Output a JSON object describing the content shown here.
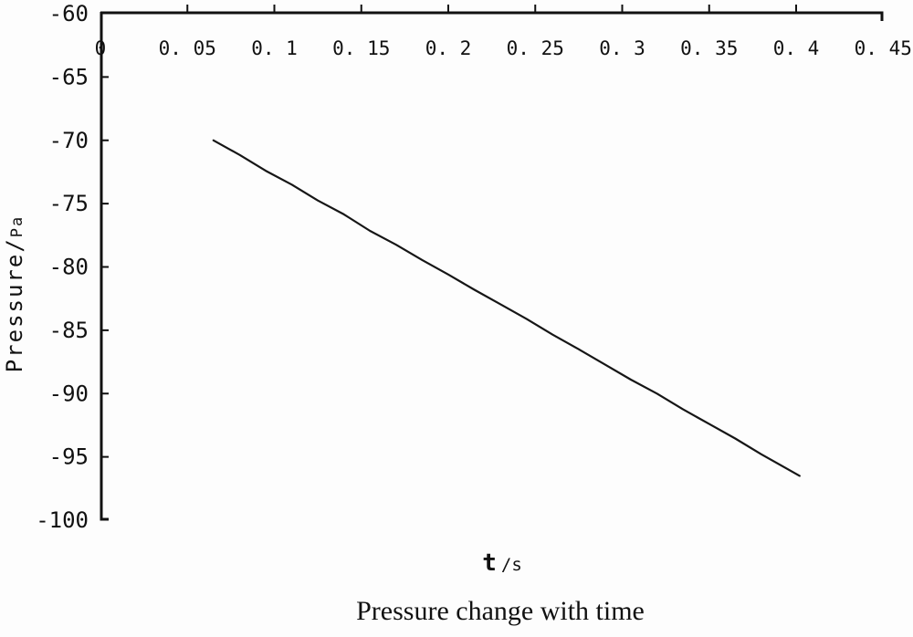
{
  "chart_data": {
    "type": "line",
    "title": "Pressure change with time",
    "xlabel": "t /s",
    "ylabel": "Pressure/Pa",
    "xlim": [
      0,
      0.45
    ],
    "ylim": [
      -100,
      -60
    ],
    "grid": false,
    "legend": "none",
    "line_color": "#161616",
    "x_ticks": [
      {
        "value": 0,
        "label": "0"
      },
      {
        "value": 0.05,
        "label": "0. 05"
      },
      {
        "value": 0.1,
        "label": "0. 1"
      },
      {
        "value": 0.15,
        "label": "0. 15"
      },
      {
        "value": 0.2,
        "label": "0. 2"
      },
      {
        "value": 0.25,
        "label": "0. 25"
      },
      {
        "value": 0.3,
        "label": "0. 3"
      },
      {
        "value": 0.35,
        "label": "0. 35"
      },
      {
        "value": 0.4,
        "label": "0. 4"
      },
      {
        "value": 0.45,
        "label": "0. 45"
      }
    ],
    "y_ticks": [
      {
        "value": -60,
        "label": "-60"
      },
      {
        "value": -65,
        "label": "-65"
      },
      {
        "value": -70,
        "label": "-70"
      },
      {
        "value": -75,
        "label": "-75"
      },
      {
        "value": -80,
        "label": "-80"
      },
      {
        "value": -85,
        "label": "-85"
      },
      {
        "value": -90,
        "label": "-90"
      },
      {
        "value": -95,
        "label": "-95"
      },
      {
        "value": -100,
        "label": "-100"
      }
    ],
    "series": [
      {
        "name": "pressure",
        "points": [
          [
            0.065,
            -70.0
          ],
          [
            0.08,
            -71.15
          ],
          [
            0.095,
            -72.4
          ],
          [
            0.11,
            -73.5
          ],
          [
            0.125,
            -74.75
          ],
          [
            0.14,
            -75.85
          ],
          [
            0.155,
            -77.15
          ],
          [
            0.17,
            -78.25
          ],
          [
            0.185,
            -79.45
          ],
          [
            0.2,
            -80.6
          ],
          [
            0.215,
            -81.8
          ],
          [
            0.23,
            -82.95
          ],
          [
            0.245,
            -84.1
          ],
          [
            0.26,
            -85.35
          ],
          [
            0.275,
            -86.5
          ],
          [
            0.29,
            -87.7
          ],
          [
            0.305,
            -88.9
          ],
          [
            0.32,
            -90.0
          ],
          [
            0.335,
            -91.25
          ],
          [
            0.35,
            -92.4
          ],
          [
            0.365,
            -93.55
          ],
          [
            0.38,
            -94.8
          ],
          [
            0.402,
            -96.5
          ]
        ]
      }
    ]
  },
  "labels": {
    "y_title_main": "Pressure/",
    "y_title_unit": "Pa",
    "x_title_symbol": "t",
    "x_title_unit": "/s"
  }
}
